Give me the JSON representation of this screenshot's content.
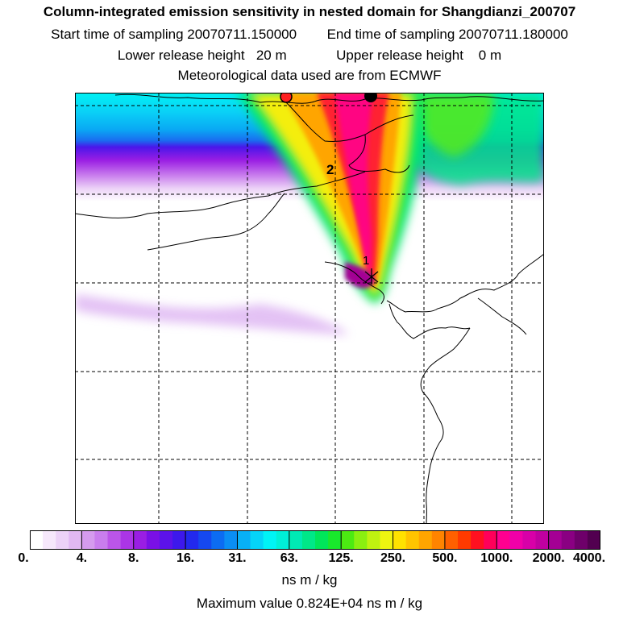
{
  "header": {
    "title": "Column-integrated emission sensitivity in nested domain for Shangdianzi_200707",
    "start_label": "Start time of sampling 20070711.150000",
    "end_label": "End time of sampling 20070711.180000",
    "lower_label": "Lower release height   20 m",
    "upper_label": "Upper release height    0 m",
    "met_label": "Meteorological data used are from ECMWF"
  },
  "map": {
    "markers": [
      {
        "label": "1",
        "color": "#000000"
      },
      {
        "label": "2",
        "color": "#000000"
      }
    ],
    "circles": [
      {
        "name": "red-dot",
        "color": "#ff2020"
      },
      {
        "name": "black-dot",
        "color": "#000000"
      }
    ]
  },
  "colorbar": {
    "ticks": [
      "0.",
      "4.",
      "8.",
      "16.",
      "31.",
      "63.",
      "125.",
      "250.",
      "500.",
      "1000.",
      "2000.",
      "4000."
    ],
    "colors": [
      "#ffffff",
      "#f6e8fb",
      "#ecd2f7",
      "#e1b8f2",
      "#d59bee",
      "#c97ded",
      "#bb55e8",
      "#ab35e6",
      "#9a1ee3",
      "#7a10e6",
      "#5c12ea",
      "#3d18ec",
      "#2229ee",
      "#1548f0",
      "#0c6cf2",
      "#0a8ef4",
      "#08b0f6",
      "#05d4f8",
      "#00f4f6",
      "#00f0d8",
      "#00eab4",
      "#00e888",
      "#00e65a",
      "#18e82c",
      "#4cea12",
      "#8aef10",
      "#bff210",
      "#eef410",
      "#ffe200",
      "#ffc400",
      "#ffa500",
      "#ff8400",
      "#ff6000",
      "#ff3a00",
      "#ff1020",
      "#ff005a",
      "#ff0090",
      "#f000a8",
      "#d800a8",
      "#c000a0",
      "#a40094",
      "#8a0082",
      "#6e006a",
      "#520050"
    ],
    "unit": "ns m / kg",
    "max_value": "Maximum value  0.824E+04 ns m / kg"
  }
}
